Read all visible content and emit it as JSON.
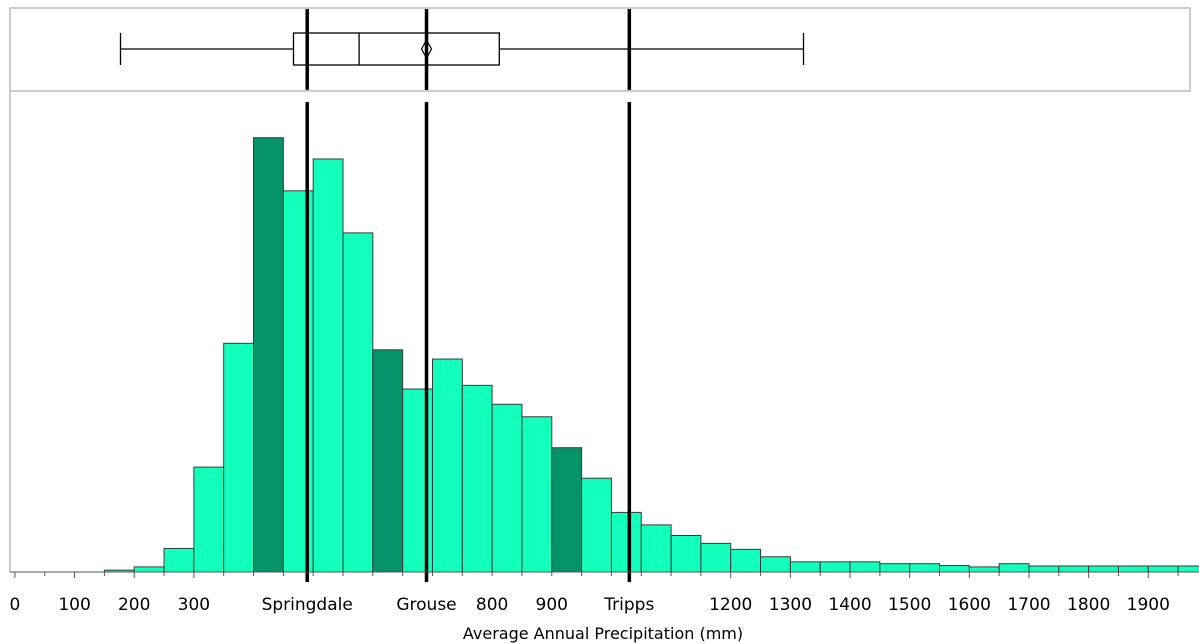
{
  "chart_data": {
    "type": "bar",
    "title": "",
    "xlabel": "Average Annual Precipitation (mm)",
    "ylabel": "",
    "xlim": [
      -25,
      1985
    ],
    "bin_width": 50,
    "grid": false,
    "colors": {
      "bar": "#13ffbe",
      "highlight": "#05936a",
      "bar_edge": "#3a3a3a",
      "frame": "#9a9a9a",
      "marker": "#000000"
    },
    "x_ticks": [
      0,
      100,
      200,
      300,
      1200,
      1300,
      1400,
      1500,
      1600,
      1700,
      1800,
      1900
    ],
    "tick_labels": [
      {
        "x": 0,
        "label": "0"
      },
      {
        "x": 100,
        "label": "100"
      },
      {
        "x": 200,
        "label": "200"
      },
      {
        "x": 300,
        "label": "300"
      },
      {
        "x": 800,
        "label": "800"
      },
      {
        "x": 900,
        "label": "900"
      },
      {
        "x": 1200,
        "label": "1200"
      },
      {
        "x": 1300,
        "label": "1300"
      },
      {
        "x": 1400,
        "label": "1400"
      },
      {
        "x": 1500,
        "label": "1500"
      },
      {
        "x": 1600,
        "label": "1600"
      },
      {
        "x": 1700,
        "label": "1700"
      },
      {
        "x": 1800,
        "label": "1800"
      },
      {
        "x": 1900,
        "label": "1900"
      }
    ],
    "bins": {
      "start": [
        150,
        200,
        250,
        300,
        350,
        400,
        450,
        500,
        550,
        600,
        650,
        700,
        750,
        800,
        850,
        900,
        950,
        1000,
        1050,
        1100,
        1150,
        1200,
        1250,
        1300,
        1350,
        1400,
        1450,
        1500,
        1550,
        1600,
        1650,
        1700,
        1750,
        1800,
        1850,
        1900,
        1950
      ],
      "values": [
        0.4,
        1.1,
        5.1,
        22.7,
        49.5,
        94.0,
        82.5,
        89.4,
        73.4,
        48.1,
        39.6,
        46.1,
        40.4,
        36.3,
        33.6,
        26.9,
        20.3,
        12.9,
        10.2,
        7.9,
        6.2,
        4.9,
        3.3,
        2.2,
        2.2,
        2.2,
        1.8,
        1.8,
        1.4,
        1.1,
        1.8,
        1.3,
        1.3,
        1.3,
        1.3,
        1.3,
        1.3
      ],
      "highlighted": [
        0,
        0,
        0,
        0,
        0,
        1,
        0,
        0,
        0,
        1,
        0,
        0,
        0,
        0,
        0,
        1,
        0,
        0,
        0,
        0,
        0,
        0,
        0,
        0,
        0,
        0,
        0,
        0,
        0,
        0,
        0,
        0,
        0,
        0,
        0,
        0,
        0
      ]
    },
    "ylim": [
      0,
      100
    ],
    "markers": [
      {
        "label": "Springdale",
        "x": 490
      },
      {
        "label": "Grouse",
        "x": 690
      },
      {
        "label": "Tripps",
        "x": 1030
      }
    ],
    "boxplot": {
      "whisker_low": 177,
      "q1": 467,
      "median": 577,
      "mean": 690,
      "q3": 812,
      "whisker_high": 1322
    }
  }
}
